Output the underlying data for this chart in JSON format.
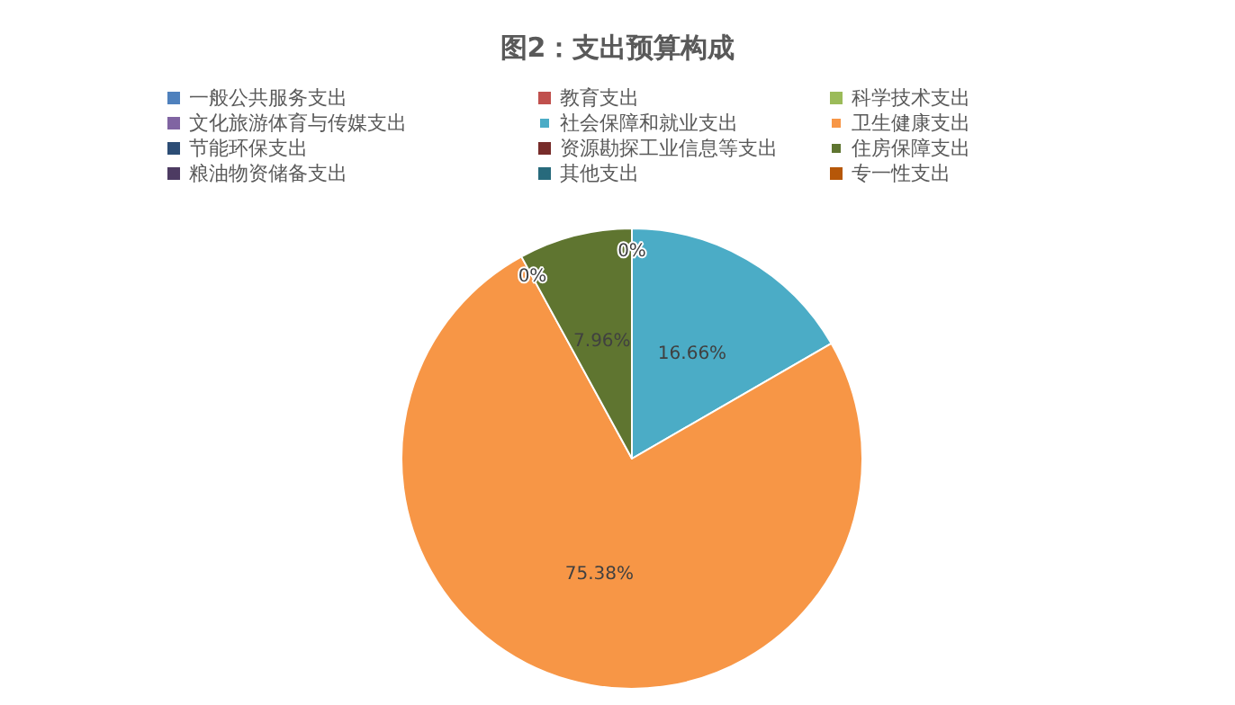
{
  "chart_data": {
    "type": "pie",
    "title": "图2：支出预算构成",
    "categories": [
      "一般公共服务支出",
      "教育支出",
      "科学技术支出",
      "文化旅游体育与传媒支出",
      "社会保障和就业支出",
      "卫生健康支出",
      "节能环保支出",
      "资源勘探工业信息等支出",
      "住房保障支出",
      "粮油物资储备支出",
      "其他支出",
      "专一性支出"
    ],
    "values": [
      0,
      0,
      0,
      0,
      16.66,
      75.38,
      0,
      0,
      7.96,
      0,
      0,
      0
    ],
    "value_labels": [
      null,
      null,
      null,
      null,
      "16.66%",
      "75.38%",
      "0%",
      null,
      "7.96%",
      "0%",
      null,
      null
    ],
    "colors": [
      "#4f81bd",
      "#c0504d",
      "#9bbb59",
      "#8064a2",
      "#4bacc6",
      "#f79646",
      "#2c4d75",
      "#772c2a",
      "#5f7530",
      "#4d3b62",
      "#276a7c",
      "#b65708"
    ],
    "legend": "top"
  }
}
